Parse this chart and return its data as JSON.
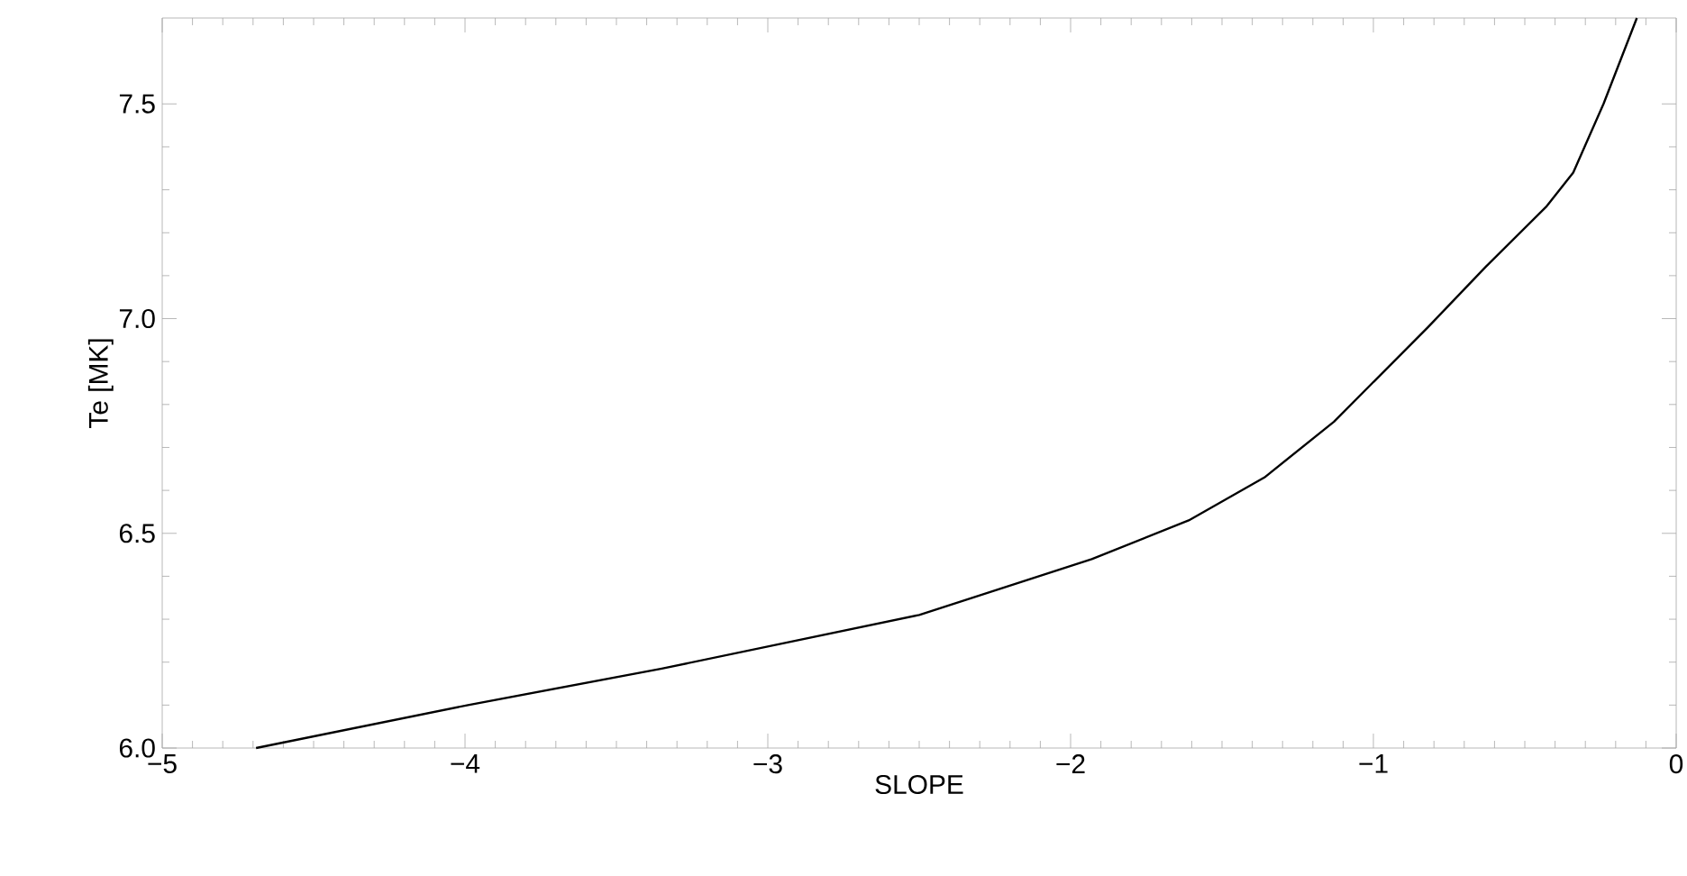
{
  "chart_data": {
    "type": "line",
    "xlabel": "SLOPE",
    "ylabel": "Te [MK]",
    "x": [
      -4.69,
      -3.99,
      -3.35,
      -2.5,
      -1.93,
      -1.61,
      -1.36,
      -1.13,
      -0.82,
      -0.63,
      -0.43,
      -0.34,
      -0.24,
      -0.13
    ],
    "series": [
      {
        "color": "#000000",
        "values": [
          6.0,
          6.1,
          6.185,
          6.31,
          6.44,
          6.53,
          6.63,
          6.76,
          6.98,
          7.12,
          7.26,
          7.34,
          7.5,
          7.7
        ]
      }
    ],
    "xlim": [
      -5,
      0
    ],
    "ylim": [
      6.0,
      7.7
    ],
    "xticks": [
      {
        "value": -5,
        "label": "−5"
      },
      {
        "value": -4,
        "label": "−4"
      },
      {
        "value": -3,
        "label": "−3"
      },
      {
        "value": -2,
        "label": "−2"
      },
      {
        "value": -1,
        "label": "−1"
      },
      0
    ],
    "yticks": [
      {
        "value": 6.0,
        "label": "6.0"
      },
      {
        "value": 6.5,
        "label": "6.5"
      },
      {
        "value": 7.0,
        "label": "7.0"
      },
      {
        "value": 7.5,
        "label": "7.5"
      }
    ],
    "grid": false,
    "marker": "none",
    "line_style": "solid"
  }
}
